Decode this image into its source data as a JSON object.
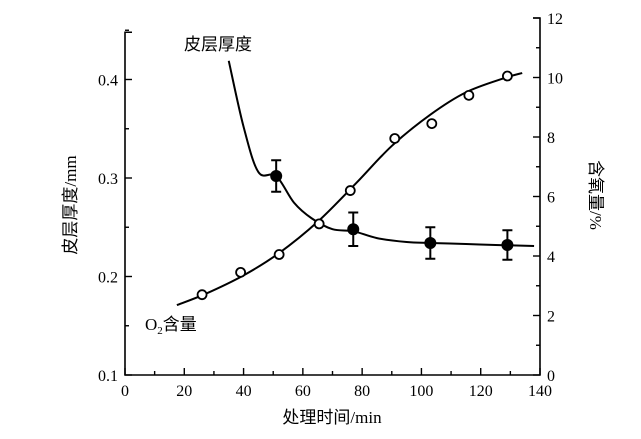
{
  "chart_data": {
    "type": "line",
    "title": "",
    "xlabel": "处理时间/min",
    "ylabel_left": "皮层厚度/mm",
    "ylabel_right": "含氧量/%",
    "xlim": [
      0,
      140
    ],
    "ylim_left": [
      0.1,
      0.45
    ],
    "ylim_right": [
      0,
      12
    ],
    "x_ticks": [
      0,
      20,
      40,
      60,
      80,
      100,
      120,
      140
    ],
    "y_left_ticks": [
      "0.1",
      "0.2",
      "0.3",
      "0.4"
    ],
    "y_right_ticks": [
      "0",
      "2",
      "4",
      "6",
      "8",
      "10",
      "12"
    ],
    "grid": false,
    "series": [
      {
        "name": "皮层厚度",
        "axis": "left",
        "marker": "filled-circle",
        "x": [
          51,
          77,
          103,
          129
        ],
        "y": [
          0.302,
          0.248,
          0.234,
          0.232
        ],
        "error": [
          0.016,
          0.017,
          0.016,
          0.015
        ],
        "fit": {
          "x": [
            35,
            40,
            45,
            51,
            57,
            63,
            70,
            77,
            85,
            95,
            103,
            115,
            125,
            138
          ],
          "y": [
            0.419,
            0.352,
            0.306,
            0.302,
            0.275,
            0.259,
            0.248,
            0.246,
            0.239,
            0.235,
            0.234,
            0.233,
            0.232,
            0.231
          ]
        }
      },
      {
        "name": "O2含量",
        "axis": "right",
        "marker": "open-circle",
        "x": [
          26,
          39,
          52,
          65.5,
          76,
          91,
          103.5,
          116,
          129
        ],
        "y": [
          2.7,
          3.45,
          4.05,
          5.08,
          6.2,
          7.95,
          8.45,
          9.4,
          10.05
        ],
        "fit": {
          "x": [
            17.5,
            27,
            40,
            52,
            65,
            78,
            90,
            103,
            115,
            128,
            134
          ],
          "y": [
            2.35,
            2.72,
            3.35,
            4.1,
            5.15,
            6.45,
            7.7,
            8.75,
            9.5,
            9.98,
            10.15
          ]
        }
      }
    ],
    "annotations": [
      {
        "text": "皮层厚度",
        "series": 0
      },
      {
        "text_main": "O",
        "text_sub": "2",
        "text_rest": "含量",
        "series": 1
      }
    ]
  }
}
